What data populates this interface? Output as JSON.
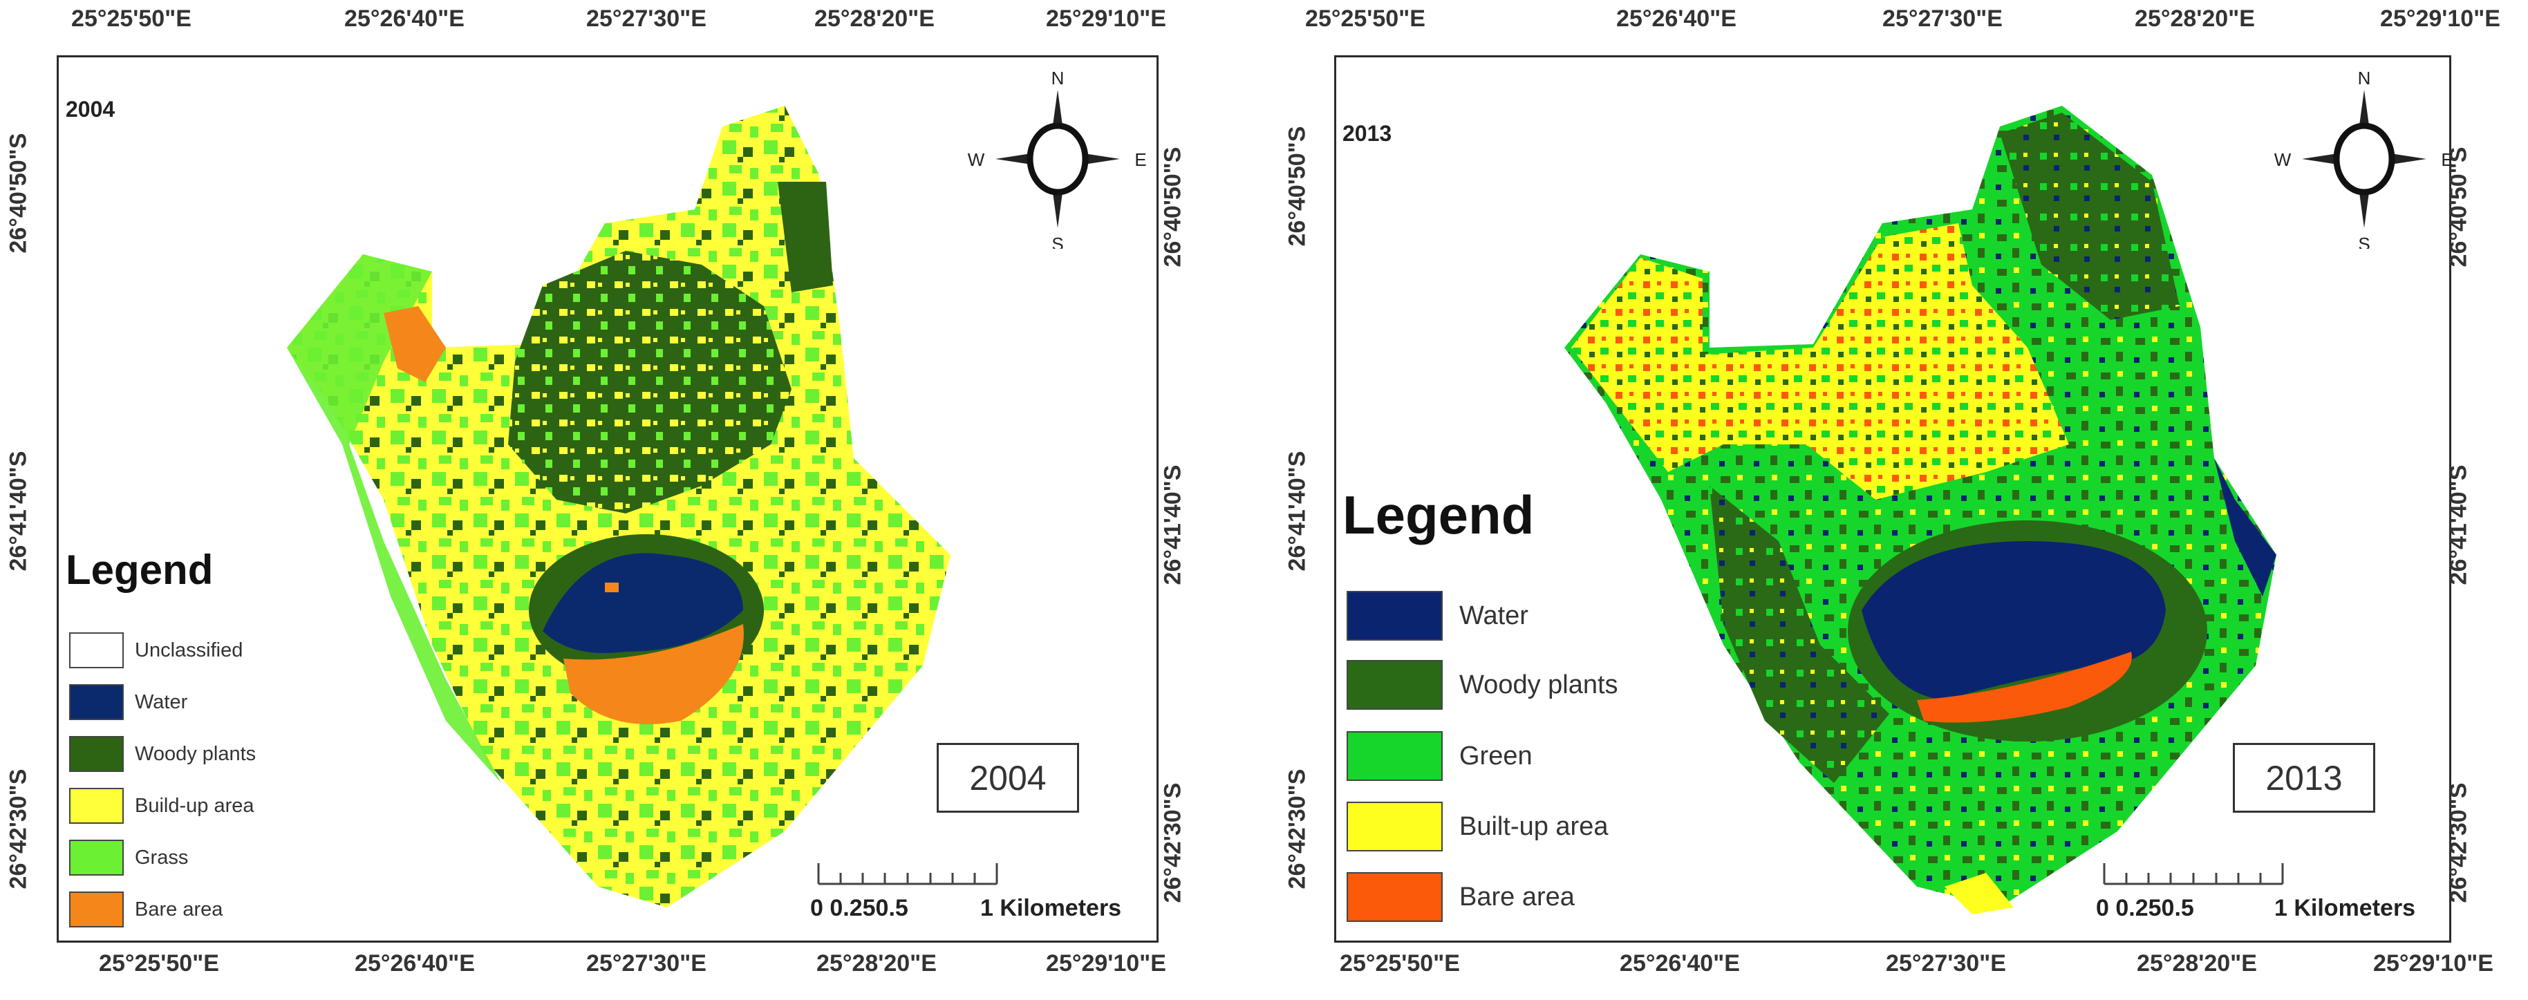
{
  "maps": [
    {
      "tag": "2004",
      "year_box": "2004",
      "top_lon": [
        "25°25'50\"E",
        "25°26'40\"E",
        "25°27'30\"E",
        "25°28'20\"E",
        "25°29'10\"E"
      ],
      "bottom_lon": [
        "25°25'50\"E",
        "25°26'40\"E",
        "25°27'30\"E",
        "25°28'20\"E",
        "25°29'10\"E"
      ],
      "left_lat": [
        "26°40'50\"S",
        "26°41'40\"S",
        "26°42'30\"S"
      ],
      "right_lat": [
        "26°40'50\"S",
        "26°41'40\"S",
        "26°42'30\"S"
      ],
      "legend": {
        "title": "Legend",
        "items": [
          {
            "label": "Unclassified",
            "color": "#ffffff"
          },
          {
            "label": "Water",
            "color": "#0b2a6e"
          },
          {
            "label": "Woody plants",
            "color": "#2d6414"
          },
          {
            "label": "Build-up area",
            "color": "#ffff3a"
          },
          {
            "label": "Grass",
            "color": "#6cf033"
          },
          {
            "label": "Bare area",
            "color": "#f5861a"
          }
        ]
      },
      "compass": {
        "n": "N",
        "s": "S",
        "e": "E",
        "w": "W"
      },
      "scale": {
        "ticks": "0 0.250.5",
        "end": "1 Kilometers"
      }
    },
    {
      "tag": "2013",
      "year_box": "2013",
      "top_lon": [
        "25°25'50\"E",
        "25°26'40\"E",
        "25°27'30\"E",
        "25°28'20\"E",
        "25°29'10\"E"
      ],
      "bottom_lon": [
        "25°25'50\"E",
        "25°26'40\"E",
        "25°27'30\"E",
        "25°28'20\"E",
        "25°29'10\"E"
      ],
      "left_lat": [
        "26°40'50\"S",
        "26°41'40\"S",
        "26°42'30\"S"
      ],
      "right_lat": [
        "26°40'50\"S",
        "26°41'40\"S",
        "26°42'30\"S"
      ],
      "legend": {
        "title": "Legend",
        "items": [
          {
            "label": "Water",
            "color": "#0a2470"
          },
          {
            "label": "Woody plants",
            "color": "#2a6a16"
          },
          {
            "label": "Green",
            "color": "#16d62c"
          },
          {
            "label": "Built-up area",
            "color": "#ffff1e"
          },
          {
            "label": "Bare area",
            "color": "#fa5a0a"
          }
        ]
      },
      "compass": {
        "n": "N",
        "s": "S",
        "e": "E",
        "w": "W"
      },
      "scale": {
        "ticks": "0 0.250.5",
        "end": "1 Kilometers"
      }
    }
  ]
}
